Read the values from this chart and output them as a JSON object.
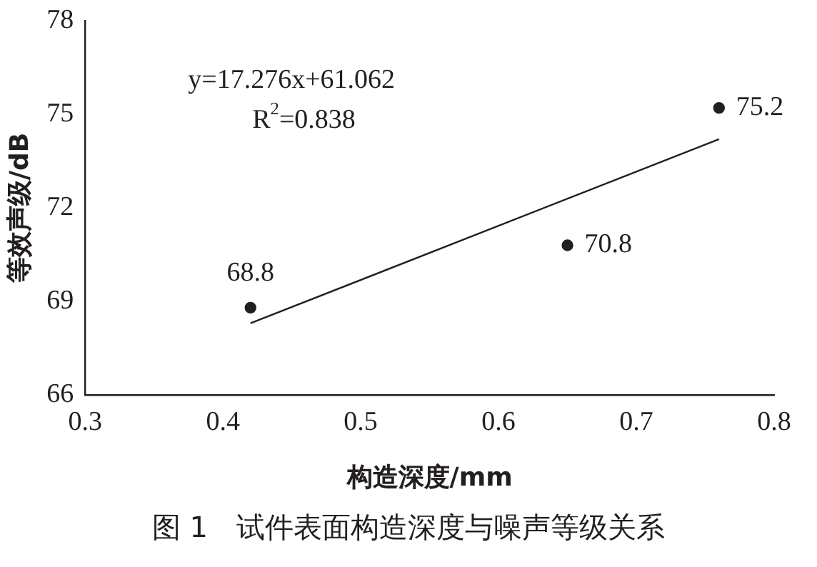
{
  "chart_data": {
    "type": "scatter",
    "title": "图 1　试件表面构造深度与噪声等级关系",
    "xlabel": "构造深度/mm",
    "ylabel": "等效声级/dB",
    "annotations": [
      "y=17.276x+61.062",
      "R$^{2}$=0.838"
    ],
    "series": [
      {
        "color": "#231f20",
        "x": [
          0.42,
          0.65,
          0.76
        ],
        "values": [
          68.8,
          70.8,
          75.2
        ],
        "value_labels": [
          "68.8",
          "70.8",
          "75.2"
        ],
        "marker": "circle"
      },
      {
        "type": "line",
        "color": "#231f20",
        "x": [
          0.42,
          0.76
        ],
        "values": [
          68.3,
          74.2
        ],
        "marker": "none",
        "line_style": "solid"
      }
    ],
    "xlim": [
      0.3,
      0.8
    ],
    "xticks": [
      0.3,
      0.4,
      0.5,
      0.6,
      0.7,
      0.8
    ],
    "ylim": [
      66,
      78
    ],
    "yticks": [
      66,
      69,
      72,
      75,
      78
    ],
    "grid": false,
    "legend": false
  }
}
